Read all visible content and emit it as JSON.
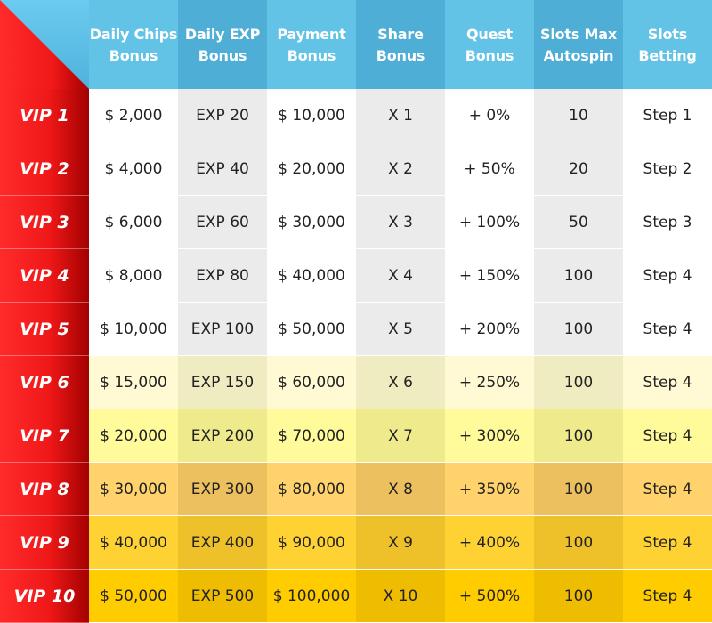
{
  "colors": {
    "header_light": "#63c3e6",
    "header_dark": "#4faed6",
    "vip_red": "#f01818",
    "vip_dark_red": "#a30000"
  },
  "headers": [
    "Daily Chips\nBonus",
    "Daily EXP\nBonus",
    "Payment\nBonus",
    "Share\nBonus",
    "Quest\nBonus",
    "Slots Max\nAutospin",
    "Slots\nBetting"
  ],
  "rows": [
    {
      "vip": "VIP 1",
      "chips": "$ 2,000",
      "exp": "EXP 20",
      "payment": "$ 10,000",
      "share": "X 1",
      "quest": "+ 0%",
      "autospin": "10",
      "betting": "Step 1",
      "bg": [
        "#ffffff",
        "#ebebeb",
        "#ffffff",
        "#ebebeb",
        "#ffffff",
        "#ebebeb",
        "#ffffff"
      ]
    },
    {
      "vip": "VIP 2",
      "chips": "$ 4,000",
      "exp": "EXP 40",
      "payment": "$ 20,000",
      "share": "X 2",
      "quest": "+ 50%",
      "autospin": "20",
      "betting": "Step 2",
      "bg": [
        "#ffffff",
        "#ebebeb",
        "#ffffff",
        "#ebebeb",
        "#ffffff",
        "#ebebeb",
        "#ffffff"
      ]
    },
    {
      "vip": "VIP 3",
      "chips": "$ 6,000",
      "exp": "EXP 60",
      "payment": "$ 30,000",
      "share": "X 3",
      "quest": "+ 100%",
      "autospin": "50",
      "betting": "Step 3",
      "bg": [
        "#ffffff",
        "#ebebeb",
        "#ffffff",
        "#ebebeb",
        "#ffffff",
        "#ebebeb",
        "#ffffff"
      ]
    },
    {
      "vip": "VIP 4",
      "chips": "$ 8,000",
      "exp": "EXP 80",
      "payment": "$ 40,000",
      "share": "X 4",
      "quest": "+ 150%",
      "autospin": "100",
      "betting": "Step 4",
      "bg": [
        "#ffffff",
        "#ebebeb",
        "#ffffff",
        "#ebebeb",
        "#ffffff",
        "#ebebeb",
        "#ffffff"
      ]
    },
    {
      "vip": "VIP 5",
      "chips": "$ 10,000",
      "exp": "EXP 100",
      "payment": "$ 50,000",
      "share": "X 5",
      "quest": "+ 200%",
      "autospin": "100",
      "betting": "Step 4",
      "bg": [
        "#ffffff",
        "#ebebeb",
        "#ffffff",
        "#ebebeb",
        "#ffffff",
        "#ebebeb",
        "#ffffff"
      ]
    },
    {
      "vip": "VIP 6",
      "chips": "$ 15,000",
      "exp": "EXP 150",
      "payment": "$ 60,000",
      "share": "X 6",
      "quest": "+ 250%",
      "autospin": "100",
      "betting": "Step 4",
      "bg": [
        "#fffad3",
        "#f0ecc2",
        "#fffad3",
        "#f0ecc2",
        "#fffad3",
        "#f0ecc2",
        "#fffad3"
      ]
    },
    {
      "vip": "VIP 7",
      "chips": "$ 20,000",
      "exp": "EXP 200",
      "payment": "$ 70,000",
      "share": "X 7",
      "quest": "+ 300%",
      "autospin": "100",
      "betting": "Step 4",
      "bg": [
        "#fffa9a",
        "#efea8c",
        "#fffa9a",
        "#efea8c",
        "#fffa9a",
        "#efea8c",
        "#fffa9a"
      ]
    },
    {
      "vip": "VIP 8",
      "chips": "$ 30,000",
      "exp": "EXP 300",
      "payment": "$ 80,000",
      "share": "X 8",
      "quest": "+ 350%",
      "autospin": "100",
      "betting": "Step 4",
      "bg": [
        "#ffd26b",
        "#edc05f",
        "#ffd26b",
        "#edc05f",
        "#ffd26b",
        "#edc05f",
        "#ffd26b"
      ]
    },
    {
      "vip": "VIP 9",
      "chips": "$ 40,000",
      "exp": "EXP 400",
      "payment": "$ 90,000",
      "share": "X 9",
      "quest": "+ 400%",
      "autospin": "100",
      "betting": "Step 4",
      "bg": [
        "#ffd233",
        "#eec02a",
        "#ffd233",
        "#eec02a",
        "#ffd233",
        "#eec02a",
        "#ffd233"
      ]
    },
    {
      "vip": "VIP 10",
      "chips": "$ 50,000",
      "exp": "EXP 500",
      "payment": "$ 100,000",
      "share": "X 10",
      "quest": "+ 500%",
      "autospin": "100",
      "betting": "Step 4",
      "bg": [
        "#ffcc00",
        "#eebc00",
        "#ffcc00",
        "#eebc00",
        "#ffcc00",
        "#eebc00",
        "#ffcc00"
      ]
    }
  ]
}
